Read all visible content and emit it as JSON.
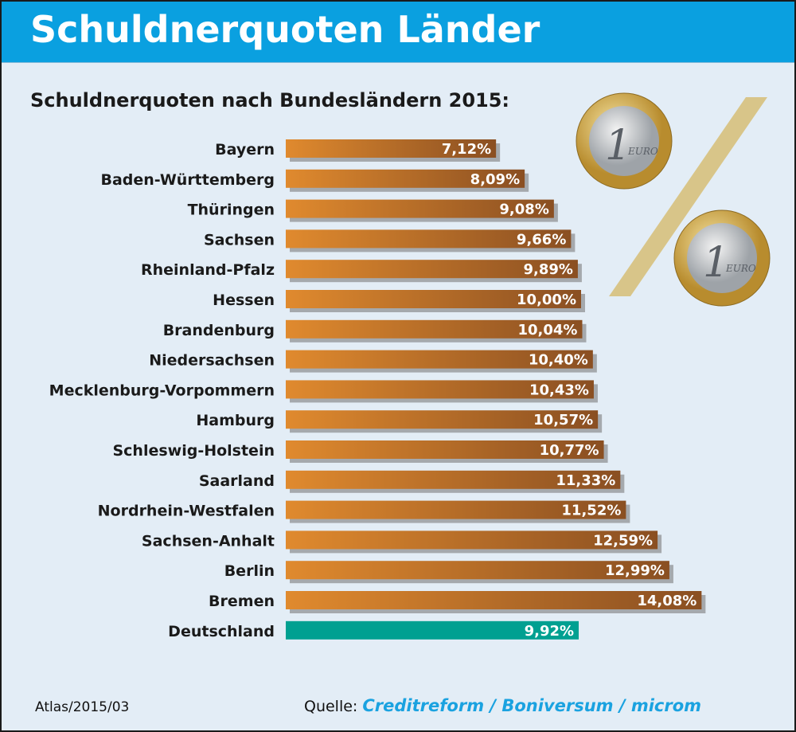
{
  "header": {
    "title": "Schuldnerquoten Länder"
  },
  "chart_data": {
    "type": "bar",
    "orientation": "horizontal",
    "title": "Schuldnerquoten nach Bundesländern 2015:",
    "categories": [
      "Bayern",
      "Baden-Württemberg",
      "Thüringen",
      "Sachsen",
      "Rheinland-Pfalz",
      "Hessen",
      "Brandenburg",
      "Niedersachsen",
      "Mecklenburg-Vorpommern",
      "Hamburg",
      "Schleswig-Holstein",
      "Saarland",
      "Nordrhein-Westfalen",
      "Sachsen-Anhalt",
      "Berlin",
      "Bremen",
      "Deutschland"
    ],
    "values": [
      7.12,
      8.09,
      9.08,
      9.66,
      9.89,
      10.0,
      10.04,
      10.4,
      10.43,
      10.57,
      10.77,
      11.33,
      11.52,
      12.59,
      12.99,
      14.08,
      9.92
    ],
    "value_labels": [
      "7,12%",
      "8,09%",
      "9,08%",
      "9,66%",
      "9,89%",
      "10,00%",
      "10,04%",
      "10,40%",
      "10,43%",
      "10,57%",
      "10,77%",
      "11,33%",
      "11,52%",
      "12,59%",
      "12,99%",
      "14,08%",
      "9,92%"
    ],
    "highlight": "Deutschland",
    "xlabel": "",
    "ylabel": "",
    "xlim": [
      0,
      14.5
    ],
    "colors": {
      "bar_start": "#e08a2e",
      "bar_end": "#8a4f22",
      "highlight": "#00a091",
      "highlight_label": "#00a091",
      "shadow": "#a5a9ad"
    }
  },
  "coins": {
    "text": "EURO",
    "digit": "1"
  },
  "footer": {
    "atlas": "Atlas/2015/03",
    "source_label": "Quelle:",
    "source": "Creditreform / Boniversum / microm",
    "logo_text": "CREDITREFORM"
  }
}
